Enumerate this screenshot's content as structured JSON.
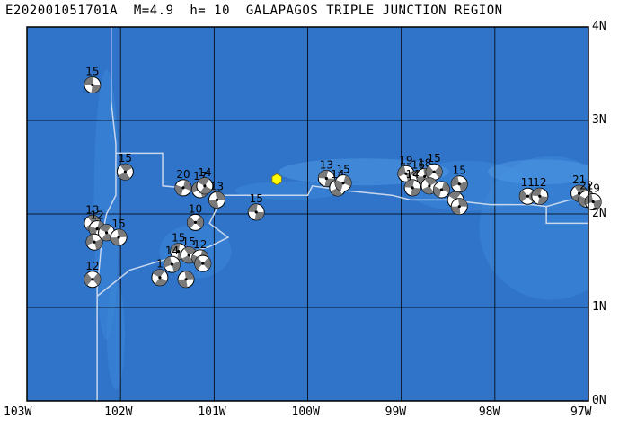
{
  "map": {
    "title": "E202001051701A  M=4.9  h= 10  GALAPAGOS TRIPLE JUNCTION REGION",
    "lon_min": -103,
    "lon_max": -97,
    "lat_min": 0,
    "lat_max": 4,
    "x_ticks": [
      {
        "lon": -103,
        "label": "103W"
      },
      {
        "lon": -102,
        "label": "102W"
      },
      {
        "lon": -101,
        "label": "101W"
      },
      {
        "lon": -100,
        "label": "100W"
      },
      {
        "lon": -99,
        "label": "99W"
      },
      {
        "lon": -98,
        "label": "98W"
      },
      {
        "lon": -97,
        "label": "97W"
      }
    ],
    "y_ticks": [
      {
        "lat": 4,
        "label": "4N"
      },
      {
        "lat": 3,
        "label": "3N"
      },
      {
        "lat": 2,
        "label": "2N"
      },
      {
        "lat": 1,
        "label": "1N"
      },
      {
        "lat": 0,
        "label": "0N"
      }
    ],
    "colors": {
      "ocean": "#2f74c8",
      "shallow": "#3d86d8",
      "ridge": "#4f98e6",
      "grid": "#000000",
      "boundary": "#c8d7ee",
      "event": "#ffff00"
    },
    "main_event": {
      "lon": -100.33,
      "lat": 2.37
    },
    "mechanisms": [
      {
        "lon": -102.3,
        "lat": 3.38,
        "depth": "15"
      },
      {
        "lon": -101.95,
        "lat": 2.45,
        "depth": "15"
      },
      {
        "lon": -101.33,
        "lat": 2.28,
        "depth": "20"
      },
      {
        "lon": -101.15,
        "lat": 2.26,
        "depth": "17"
      },
      {
        "lon": -101.1,
        "lat": 2.3,
        "depth": "14"
      },
      {
        "lon": -100.97,
        "lat": 2.15,
        "depth": "13"
      },
      {
        "lon": -101.2,
        "lat": 1.91,
        "depth": "10"
      },
      {
        "lon": -100.55,
        "lat": 2.02,
        "depth": "15"
      },
      {
        "lon": -102.3,
        "lat": 1.9,
        "depth": "13"
      },
      {
        "lon": -102.25,
        "lat": 1.84,
        "depth": "12"
      },
      {
        "lon": -102.28,
        "lat": 1.7,
        "depth": ""
      },
      {
        "lon": -102.15,
        "lat": 1.8,
        "depth": ""
      },
      {
        "lon": -102.02,
        "lat": 1.75,
        "depth": "15"
      },
      {
        "lon": -102.3,
        "lat": 1.3,
        "depth": "12"
      },
      {
        "lon": -101.38,
        "lat": 1.6,
        "depth": "15"
      },
      {
        "lon": -101.27,
        "lat": 1.56,
        "depth": "15"
      },
      {
        "lon": -101.15,
        "lat": 1.53,
        "depth": "12"
      },
      {
        "lon": -101.45,
        "lat": 1.46,
        "depth": "14"
      },
      {
        "lon": -101.58,
        "lat": 1.32,
        "depth": "1"
      },
      {
        "lon": -101.3,
        "lat": 1.3,
        "depth": ""
      },
      {
        "lon": -101.12,
        "lat": 1.47,
        "depth": ""
      },
      {
        "lon": -99.8,
        "lat": 2.38,
        "depth": "13"
      },
      {
        "lon": -99.68,
        "lat": 2.28,
        "depth": "14"
      },
      {
        "lon": -99.62,
        "lat": 2.33,
        "depth": "15"
      },
      {
        "lon": -98.95,
        "lat": 2.43,
        "depth": "19"
      },
      {
        "lon": -98.82,
        "lat": 2.38,
        "depth": "16"
      },
      {
        "lon": -98.75,
        "lat": 2.4,
        "depth": "18"
      },
      {
        "lon": -98.65,
        "lat": 2.45,
        "depth": "15"
      },
      {
        "lon": -98.88,
        "lat": 2.28,
        "depth": "14"
      },
      {
        "lon": -98.7,
        "lat": 2.3,
        "depth": ""
      },
      {
        "lon": -98.57,
        "lat": 2.26,
        "depth": ""
      },
      {
        "lon": -98.38,
        "lat": 2.32,
        "depth": "15"
      },
      {
        "lon": -98.42,
        "lat": 2.15,
        "depth": ""
      },
      {
        "lon": -98.38,
        "lat": 2.08,
        "depth": ""
      },
      {
        "lon": -97.65,
        "lat": 2.19,
        "depth": "11"
      },
      {
        "lon": -97.52,
        "lat": 2.19,
        "depth": "12"
      },
      {
        "lon": -97.1,
        "lat": 2.22,
        "depth": "21"
      },
      {
        "lon": -97.02,
        "lat": 2.16,
        "depth": "22"
      },
      {
        "lon": -96.95,
        "lat": 2.13,
        "depth": "19"
      }
    ]
  }
}
